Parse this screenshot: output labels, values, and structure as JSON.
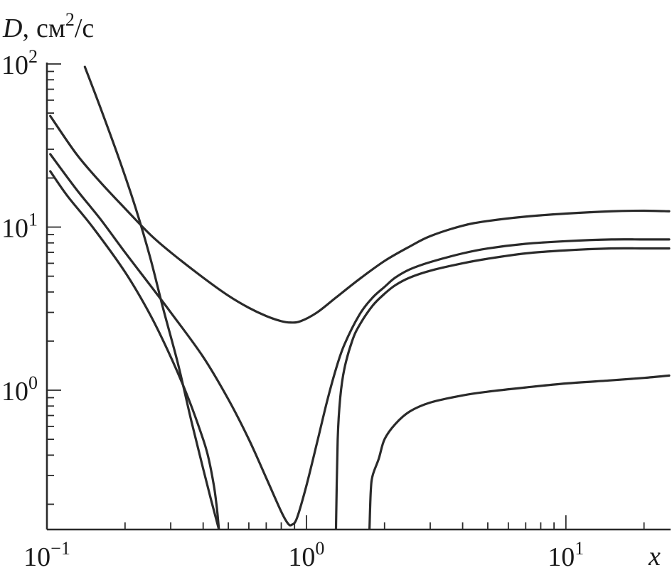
{
  "chart_data": {
    "type": "line",
    "title": "",
    "x_scale": "log",
    "y_scale": "log",
    "xlim": [
      0.1,
      25
    ],
    "ylim": [
      0.14,
      100
    ],
    "xlabel": "x",
    "ylabel": {
      "symbol": "D",
      "sep": ",",
      "unit": "см",
      "unit_exp": "2",
      "unit_tail": "/с"
    },
    "x_ticks": [
      {
        "value": 0.1,
        "base": "10",
        "exp": "−1"
      },
      {
        "value": 1,
        "base": "10",
        "exp": "0"
      },
      {
        "value": 10,
        "base": "10",
        "exp": "1"
      }
    ],
    "y_ticks": [
      {
        "value": 1,
        "base": "10",
        "exp": "0"
      },
      {
        "value": 10,
        "base": "10",
        "exp": "1"
      },
      {
        "value": 100,
        "base": "10",
        "exp": "2"
      }
    ],
    "grid": false,
    "series": [
      {
        "x": [
          0.103,
          0.13,
          0.16,
          0.2,
          0.25,
          0.3,
          0.4,
          0.5,
          0.6,
          0.7,
          0.8,
          0.87,
          0.95,
          1.1,
          1.3,
          1.6,
          2.0,
          2.5,
          3.0,
          4.0,
          5.0,
          7.0,
          10,
          15,
          20,
          25
        ],
        "y": [
          48,
          28,
          19,
          13,
          9.0,
          7.0,
          4.9,
          3.8,
          3.2,
          2.85,
          2.65,
          2.6,
          2.65,
          3.0,
          3.7,
          4.8,
          6.2,
          7.6,
          8.8,
          10.2,
          10.9,
          11.6,
          12.1,
          12.5,
          12.6,
          12.5
        ]
      },
      {
        "x": [
          0.103,
          0.13,
          0.16,
          0.2,
          0.25,
          0.3,
          0.4,
          0.5,
          0.6,
          0.7,
          0.8,
          0.85,
          0.88,
          0.92,
          1.0,
          1.1,
          1.2,
          1.3,
          1.4,
          1.6,
          1.8,
          2.0,
          2.2,
          2.5,
          3.0,
          4.0,
          5.0,
          7.0,
          10,
          15,
          20,
          25
        ],
        "y": [
          28,
          17,
          11.3,
          7.0,
          4.4,
          3.0,
          1.6,
          0.88,
          0.5,
          0.29,
          0.18,
          0.152,
          0.15,
          0.165,
          0.26,
          0.48,
          0.85,
          1.35,
          1.9,
          2.9,
          3.7,
          4.3,
          4.9,
          5.5,
          6.1,
          6.9,
          7.4,
          7.9,
          8.2,
          8.4,
          8.4,
          8.4
        ]
      },
      {
        "x": [
          0.103,
          0.12,
          0.15,
          0.2,
          0.25,
          0.3,
          0.35,
          0.4,
          0.42,
          0.44,
          0.45,
          0.455,
          0.46
        ],
        "y": [
          22,
          15.5,
          10,
          5.3,
          2.9,
          1.6,
          0.9,
          0.5,
          0.38,
          0.26,
          0.2,
          0.17,
          0.14
        ]
      },
      {
        "x": [
          0.14,
          0.16,
          0.19,
          0.22,
          0.25,
          0.28,
          0.32,
          0.36,
          0.4,
          0.43,
          0.45,
          0.46
        ],
        "y": [
          96,
          55,
          26,
          13,
          6.5,
          3.2,
          1.45,
          0.65,
          0.33,
          0.21,
          0.16,
          0.14
        ]
      },
      {
        "x": [
          1.3,
          1.32,
          1.35,
          1.4,
          1.5,
          1.6,
          1.8,
          2.0,
          2.2,
          2.5,
          3.0,
          4.0,
          5.0,
          7.0,
          10,
          15,
          20,
          25
        ],
        "y": [
          0.14,
          0.5,
          0.9,
          1.35,
          2.0,
          2.5,
          3.3,
          3.9,
          4.4,
          4.9,
          5.4,
          6.0,
          6.4,
          6.9,
          7.2,
          7.4,
          7.4,
          7.4
        ]
      },
      {
        "x": [
          1.75,
          1.77,
          1.8,
          1.9,
          2.0,
          2.2,
          2.5,
          3.0,
          4.0,
          5.0,
          7.0,
          10,
          15,
          20,
          25
        ],
        "y": [
          0.14,
          0.24,
          0.3,
          0.38,
          0.5,
          0.62,
          0.74,
          0.84,
          0.93,
          0.98,
          1.04,
          1.1,
          1.15,
          1.19,
          1.23
        ]
      }
    ]
  }
}
